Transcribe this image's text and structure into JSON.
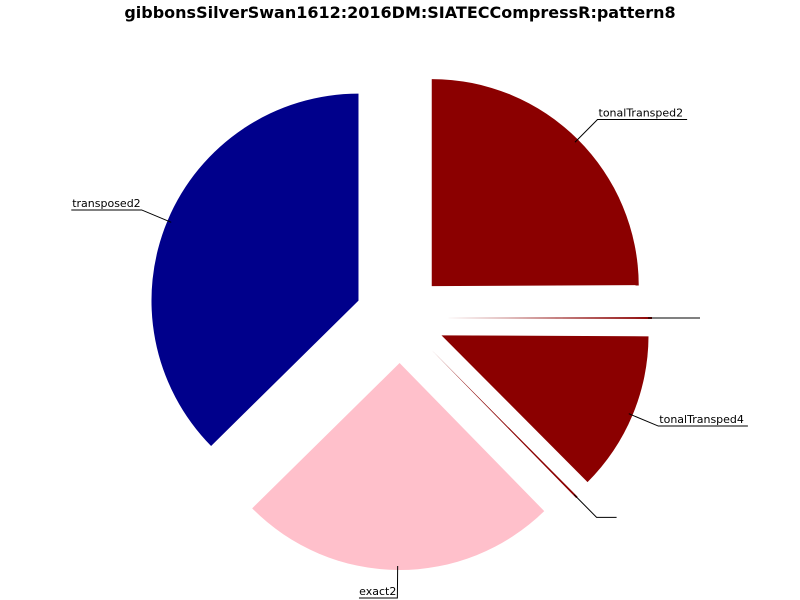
{
  "chart_data": {
    "type": "pie",
    "title": "gibbonsSilverSwan1612:2016DM:SIATECCompressR:pattern8",
    "start_angle_deg": 90,
    "direction": "clockwise",
    "slices": [
      {
        "label": "tonalTransped2",
        "value": 25,
        "color": "#8b0000",
        "explode": true
      },
      {
        "label": "",
        "value": 0.15,
        "color": "#8b0000",
        "explode": true
      },
      {
        "label": "tonalTransped4",
        "value": 12.5,
        "color": "#8b0000",
        "explode": true
      },
      {
        "label": "",
        "value": 0.15,
        "color": "#8b0000",
        "explode": true
      },
      {
        "label": "exact2",
        "value": 25,
        "color": "#ffc0cb",
        "explode": true
      },
      {
        "label": "transposed2",
        "value": 37.5,
        "color": "#00008b",
        "explode": true
      }
    ]
  }
}
